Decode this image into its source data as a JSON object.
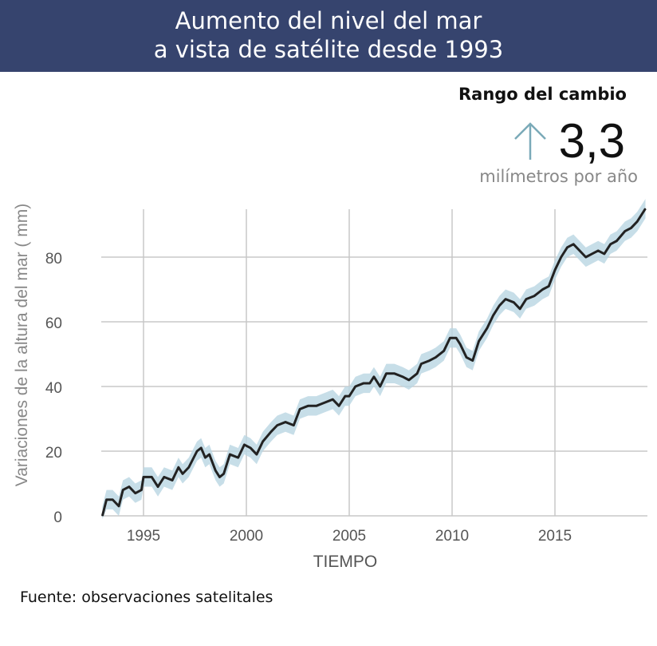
{
  "header": {
    "title_line1": "Aumento del nivel del mar",
    "title_line2": "a vista de satélite desde 1993"
  },
  "rate": {
    "title": "Rango del cambio",
    "value": "3,3",
    "unit": "milímetros por año",
    "icon": "arrow-up-icon"
  },
  "source": "Fuente: observaciones satelitales",
  "colors": {
    "banner": "#36446e",
    "line": "#222222",
    "band": "#b9d6e2",
    "arrow": "#7aaab8"
  },
  "chart_data": {
    "type": "line",
    "title": "Aumento del nivel del mar a vista de satélite desde 1993",
    "xlabel": "TIEMPO",
    "ylabel": "Variaciones de la altura del mar ( mm)",
    "xlim": [
      1993,
      2019.5
    ],
    "ylim": [
      0,
      95
    ],
    "xticks": [
      1995,
      2000,
      2005,
      2010,
      2015
    ],
    "xtick_labels": [
      "1995",
      "2000",
      "2005",
      "2010",
      "2015"
    ],
    "yticks": [
      0,
      20,
      40,
      60,
      80
    ],
    "ytick_labels": [
      "0",
      "20",
      "40",
      "60",
      "80"
    ],
    "grid": true,
    "uncertainty_band_mm": 3,
    "series": [
      {
        "name": "Nivel del mar",
        "x": [
          1993.0,
          1993.2,
          1993.5,
          1993.8,
          1994.0,
          1994.3,
          1994.6,
          1994.9,
          1995.0,
          1995.4,
          1995.7,
          1996.0,
          1996.4,
          1996.7,
          1996.9,
          1997.2,
          1997.6,
          1997.8,
          1998.0,
          1998.2,
          1998.5,
          1998.7,
          1998.9,
          1999.2,
          1999.6,
          1999.9,
          2000.2,
          2000.5,
          2000.8,
          2001.2,
          2001.5,
          2001.9,
          2002.3,
          2002.6,
          2003.0,
          2003.4,
          2003.8,
          2004.2,
          2004.5,
          2004.8,
          2005.0,
          2005.3,
          2005.7,
          2006.0,
          2006.2,
          2006.5,
          2006.8,
          2007.2,
          2007.6,
          2007.9,
          2008.3,
          2008.5,
          2008.9,
          2009.2,
          2009.6,
          2009.9,
          2010.2,
          2010.4,
          2010.7,
          2011.0,
          2011.3,
          2011.7,
          2012.0,
          2012.3,
          2012.6,
          2013.0,
          2013.3,
          2013.6,
          2014.0,
          2014.4,
          2014.7,
          2015.0,
          2015.3,
          2015.6,
          2015.9,
          2016.2,
          2016.5,
          2016.8,
          2017.1,
          2017.4,
          2017.7,
          2018.0,
          2018.4,
          2018.7,
          2019.0,
          2019.4
        ],
        "y": [
          0,
          5,
          5,
          3,
          8,
          9,
          7,
          8,
          12,
          12,
          9,
          12,
          11,
          15,
          13,
          15,
          20,
          21,
          18,
          19,
          14,
          12,
          13,
          19,
          18,
          22,
          21,
          19,
          23,
          26,
          28,
          29,
          28,
          33,
          34,
          34,
          35,
          36,
          34,
          37,
          37,
          40,
          41,
          41,
          43,
          40,
          44,
          44,
          43,
          42,
          44,
          47,
          48,
          49,
          51,
          55,
          55,
          53,
          49,
          48,
          54,
          58,
          62,
          65,
          67,
          66,
          64,
          67,
          68,
          70,
          71,
          76,
          80,
          83,
          84,
          82,
          80,
          81,
          82,
          81,
          84,
          85,
          88,
          89,
          91,
          95
        ]
      }
    ]
  }
}
